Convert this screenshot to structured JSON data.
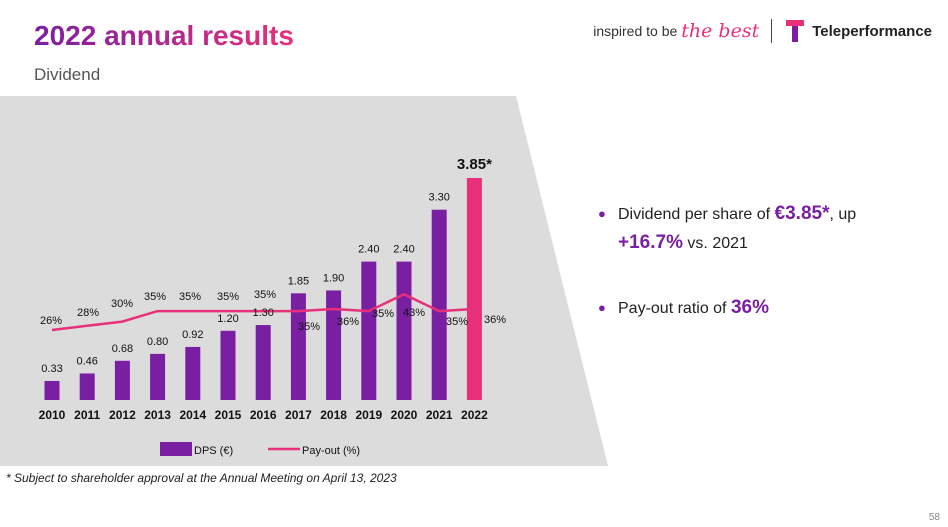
{
  "header": {
    "title": "2022 annual results",
    "subtitle": "Dividend",
    "tagline": "inspired to be",
    "tagline_script": "the best",
    "company": "Teleperformance"
  },
  "colors": {
    "purple": "#7a1fa2",
    "pink": "#e8307a",
    "panel": "#dcdcdc"
  },
  "chart_data": {
    "type": "bar",
    "categories": [
      "2010",
      "2011",
      "2012",
      "2013",
      "2014",
      "2015",
      "2016",
      "2017",
      "2018",
      "2019",
      "2020",
      "2021",
      "2022"
    ],
    "series": [
      {
        "name": "DPS (€)",
        "type": "bar",
        "values": [
          0.33,
          0.46,
          0.68,
          0.8,
          0.92,
          1.2,
          1.3,
          1.85,
          1.9,
          2.4,
          2.4,
          3.3,
          3.85
        ],
        "labels": [
          "0.33",
          "0.46",
          "0.68",
          "0.80",
          "0.92",
          "1.20",
          "1.30",
          "1.85",
          "1.90",
          "2.40",
          "2.40",
          "3.30",
          "3.85*"
        ]
      },
      {
        "name": "Pay-out (%)",
        "type": "line",
        "values": [
          26,
          28,
          30,
          35,
          35,
          35,
          35,
          35,
          36,
          35,
          43,
          35,
          36
        ],
        "labels": [
          "26%",
          "28%",
          "30%",
          "35%",
          "35%",
          "35%",
          "35%",
          "35%",
          "36%",
          "35%",
          "43%",
          "35%",
          "36%"
        ]
      }
    ],
    "highlight_category": "2022",
    "legend": "bottom"
  },
  "bullets": [
    {
      "pre": "Dividend per share of ",
      "hl1": "€3.85*",
      "mid": ", up ",
      "hl2": "+16.7%",
      "post": " vs. 2021"
    },
    {
      "pre": "Pay-out ratio of ",
      "hl1": "36%"
    }
  ],
  "footnote": "*  Subject to shareholder approval at the Annual Meeting on April 13, 2023",
  "page_number": "58"
}
